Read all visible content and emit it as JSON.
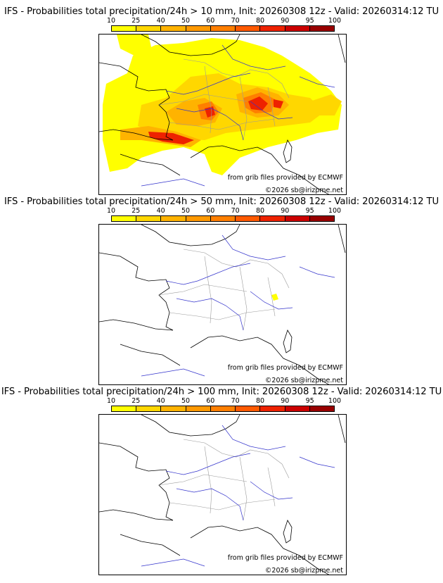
{
  "legend": {
    "ticks": [
      "10",
      "25",
      "40",
      "50",
      "60",
      "70",
      "80",
      "90",
      "95",
      "100"
    ],
    "colors": [
      "#ffff00",
      "#ffd700",
      "#ffb300",
      "#ff9900",
      "#ff7f00",
      "#ff5a00",
      "#ee2200",
      "#cc0000",
      "#990000",
      "#660000"
    ]
  },
  "panels": [
    {
      "title": "IFS - Probabilities total precipitation/24h > 10 mm, Init: 20260308 12z - Valid: 20260314:12 TU",
      "credit_source": "from grib files provided by ECMWF",
      "credit_copyright": "©2026 sb@irizpme.net"
    },
    {
      "title": "IFS - Probabilities total precipitation/24h > 50 mm, Init: 20260308 12z - Valid: 20260314:12 TU",
      "credit_source": "from grib files provided by ECMWF",
      "credit_copyright": "©2026 sb@irizpme.net"
    },
    {
      "title": "IFS - Probabilities total precipitation/24h > 100 mm, Init: 20260308 12z - Valid: 20260314:12 TU",
      "credit_source": "from grib files provided by ECMWF",
      "credit_copyright": "©2026 sb@irizpme.net"
    }
  ],
  "colors": {
    "coast": "#000000",
    "borders": "#9a9a9a",
    "rivers": "#3333cc"
  }
}
